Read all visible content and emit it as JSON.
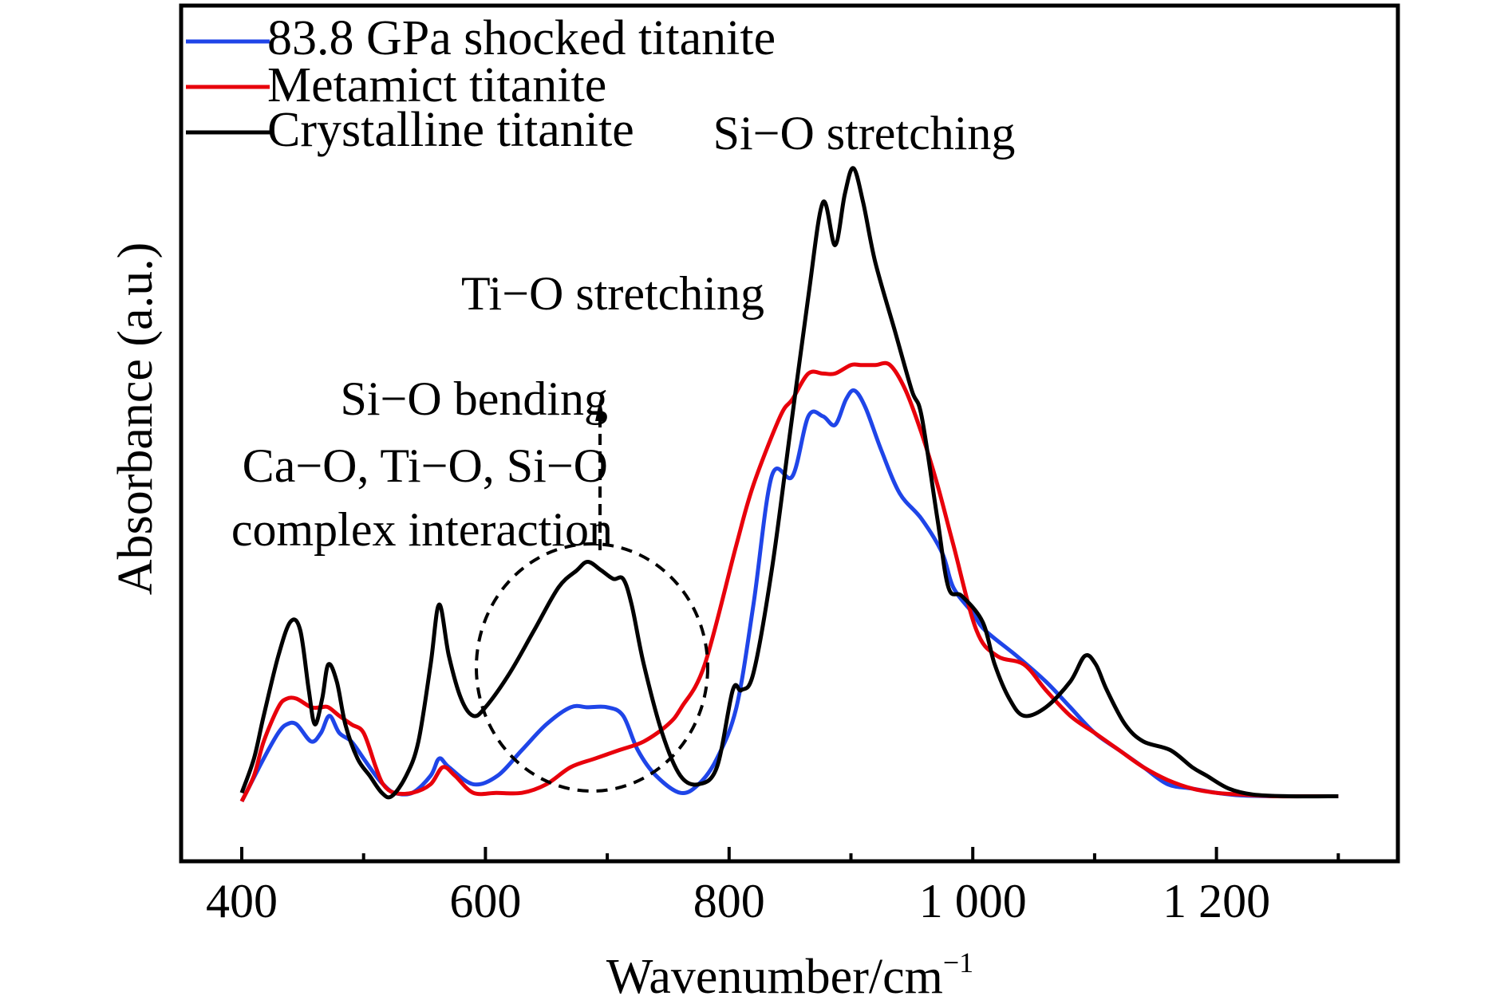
{
  "chart_data": {
    "type": "line",
    "title": "",
    "xlabel": "Wavenumber/cm",
    "xlabel_superscript": "−1",
    "ylabel": "Absorbance (a.u.)",
    "xlim": [
      350,
      1350
    ],
    "ylim": [
      0,
      1
    ],
    "x_ticks": [
      400,
      600,
      800,
      1000,
      1200
    ],
    "x_tick_labels": [
      "400",
      "600",
      "800",
      "1 000",
      "1 200"
    ],
    "x_minor_ticks": [
      500,
      700,
      900,
      1100,
      1300
    ],
    "y_ticks_shown": false,
    "grid": false,
    "legend_position": "top-left",
    "series": [
      {
        "name": "83.8 GPa shocked titanite",
        "color": "#1f45e8",
        "x": [
          400,
          418,
          430,
          437,
          445,
          457,
          465,
          472,
          480,
          490,
          500,
          510,
          516,
          525,
          540,
          555,
          562,
          570,
          590,
          610,
          630,
          650,
          670,
          684,
          700,
          713,
          725,
          740,
          760,
          775,
          790,
          806,
          820,
          835,
          852,
          865,
          877,
          887,
          896,
          903,
          912,
          925,
          940,
          958,
          975,
          984,
          1000,
          1010,
          1036,
          1060,
          1080,
          1100,
          1120,
          1140,
          1160,
          1180,
          1200,
          1220,
          1250,
          1280,
          1300
        ],
        "y": [
          0.07,
          0.12,
          0.15,
          0.16,
          0.16,
          0.14,
          0.15,
          0.17,
          0.15,
          0.14,
          0.12,
          0.1,
          0.09,
          0.08,
          0.08,
          0.1,
          0.12,
          0.11,
          0.09,
          0.1,
          0.13,
          0.16,
          0.18,
          0.18,
          0.18,
          0.17,
          0.13,
          0.1,
          0.08,
          0.09,
          0.12,
          0.18,
          0.3,
          0.45,
          0.45,
          0.52,
          0.52,
          0.51,
          0.54,
          0.55,
          0.53,
          0.48,
          0.43,
          0.4,
          0.36,
          0.32,
          0.29,
          0.27,
          0.24,
          0.21,
          0.18,
          0.15,
          0.13,
          0.11,
          0.09,
          0.085,
          0.08,
          0.077,
          0.076,
          0.076,
          0.076
        ]
      },
      {
        "name": "Metamict titanite",
        "color": "#e8000b",
        "x": [
          400,
          410,
          418,
          430,
          437,
          445,
          457,
          465,
          471,
          480,
          490,
          500,
          510,
          516,
          525,
          540,
          555,
          565,
          575,
          590,
          609,
          630,
          650,
          670,
          690,
          710,
          730,
          750,
          761,
          780,
          806,
          820,
          842,
          852,
          865,
          877,
          887,
          900,
          908,
          920,
          932,
          945,
          958,
          971,
          984,
          1003,
          1020,
          1042,
          1060,
          1080,
          1100,
          1120,
          1140,
          1160,
          1180,
          1200,
          1220,
          1250,
          1280,
          1300
        ],
        "y": [
          0.07,
          0.1,
          0.14,
          0.18,
          0.19,
          0.19,
          0.18,
          0.18,
          0.18,
          0.17,
          0.16,
          0.15,
          0.11,
          0.09,
          0.08,
          0.08,
          0.09,
          0.11,
          0.1,
          0.08,
          0.08,
          0.08,
          0.09,
          0.11,
          0.12,
          0.13,
          0.14,
          0.16,
          0.18,
          0.23,
          0.37,
          0.44,
          0.52,
          0.54,
          0.57,
          0.57,
          0.57,
          0.58,
          0.58,
          0.58,
          0.58,
          0.55,
          0.5,
          0.44,
          0.37,
          0.27,
          0.24,
          0.23,
          0.2,
          0.17,
          0.15,
          0.13,
          0.11,
          0.095,
          0.085,
          0.08,
          0.078,
          0.076,
          0.076,
          0.076
        ]
      },
      {
        "name": "Crystalline titanite",
        "color": "#000000",
        "x": [
          400,
          410,
          418,
          430,
          440,
          448,
          455,
          460,
          466,
          471,
          478,
          485,
          495,
          505,
          515,
          523,
          535,
          545,
          555,
          562,
          570,
          580,
          590,
          600,
          620,
          640,
          660,
          675,
          684,
          695,
          705,
          713,
          720,
          730,
          745,
          760,
          775,
          790,
          803,
          810,
          820,
          835,
          850,
          865,
          877,
          887,
          895,
          902,
          910,
          920,
          936,
          950,
          958,
          971,
          980,
          991,
          1008,
          1018,
          1030,
          1042,
          1060,
          1080,
          1092,
          1101,
          1110,
          1125,
          1140,
          1162,
          1180,
          1192,
          1210,
          1230,
          1260,
          1300
        ],
        "y": [
          0.08,
          0.12,
          0.17,
          0.24,
          0.28,
          0.27,
          0.2,
          0.16,
          0.19,
          0.23,
          0.21,
          0.16,
          0.12,
          0.1,
          0.08,
          0.076,
          0.1,
          0.14,
          0.23,
          0.3,
          0.24,
          0.19,
          0.17,
          0.18,
          0.22,
          0.27,
          0.32,
          0.34,
          0.35,
          0.34,
          0.33,
          0.33,
          0.3,
          0.23,
          0.15,
          0.1,
          0.09,
          0.11,
          0.2,
          0.2,
          0.22,
          0.34,
          0.5,
          0.66,
          0.77,
          0.72,
          0.78,
          0.81,
          0.77,
          0.7,
          0.62,
          0.55,
          0.52,
          0.4,
          0.32,
          0.31,
          0.28,
          0.23,
          0.19,
          0.17,
          0.18,
          0.21,
          0.24,
          0.23,
          0.2,
          0.16,
          0.14,
          0.13,
          0.11,
          0.1,
          0.085,
          0.078,
          0.076,
          0.076
        ]
      }
    ],
    "annotations": [
      {
        "text": "Si−O stretching"
      },
      {
        "text": "Ti−O stretching"
      },
      {
        "text": "Si−O bending"
      },
      {
        "text": "Ca−O, Ti−O, Si−O"
      },
      {
        "text": "complex interaction"
      }
    ],
    "highlight_region": {
      "shape": "dashed-ellipse",
      "x_range": [
        595,
        780
      ],
      "label_arrow": "dashed-up-arrow"
    }
  }
}
